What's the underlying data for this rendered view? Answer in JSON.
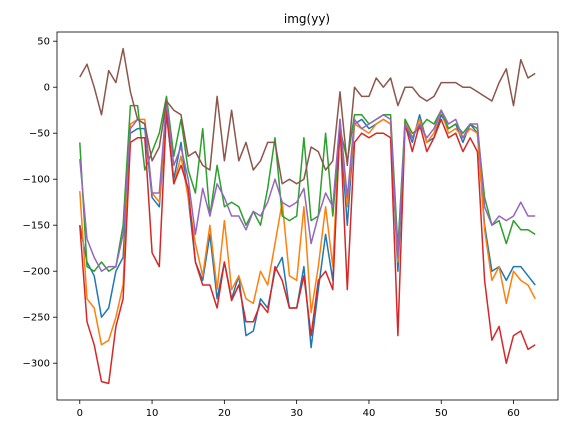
{
  "chart_data": {
    "type": "line",
    "title": "img(yy)",
    "xlabel": "",
    "ylabel": "",
    "xlim": [
      -3.15,
      66.15
    ],
    "ylim": [
      -340,
      60
    ],
    "xticks": [
      0,
      10,
      20,
      30,
      40,
      50,
      60
    ],
    "yticks": [
      -300,
      -250,
      -200,
      -150,
      -100,
      -50,
      0,
      50
    ],
    "grid": false,
    "x": [
      0,
      1,
      2,
      3,
      4,
      5,
      6,
      7,
      8,
      9,
      10,
      11,
      12,
      13,
      14,
      15,
      16,
      17,
      18,
      19,
      20,
      21,
      22,
      23,
      24,
      25,
      26,
      27,
      28,
      29,
      30,
      31,
      32,
      33,
      34,
      35,
      36,
      37,
      38,
      39,
      40,
      41,
      42,
      43,
      44,
      45,
      46,
      47,
      48,
      49,
      50,
      51,
      52,
      53,
      54,
      55,
      56,
      57,
      58,
      59,
      60,
      61,
      62,
      63
    ],
    "series": [
      {
        "color": "#1f77b4",
        "values": [
          -150,
          -190,
          -205,
          -250,
          -240,
          -200,
          -185,
          -50,
          -45,
          -45,
          -120,
          -130,
          -30,
          -100,
          -60,
          -120,
          -190,
          -210,
          -160,
          -230,
          -190,
          -230,
          -205,
          -270,
          -265,
          -230,
          -240,
          -200,
          -185,
          -240,
          -240,
          -195,
          -283,
          -220,
          -160,
          -210,
          -40,
          -150,
          -40,
          -35,
          -45,
          -40,
          -35,
          -40,
          -200,
          -40,
          -60,
          -30,
          -60,
          -55,
          -30,
          -45,
          -40,
          -60,
          -40,
          -50,
          -150,
          -200,
          -195,
          -210,
          -195,
          -195,
          -205,
          -215
        ]
      },
      {
        "color": "#ff7f0e",
        "values": [
          -113,
          -230,
          -240,
          -280,
          -275,
          -250,
          -215,
          -40,
          -35,
          -35,
          -115,
          -125,
          -25,
          -105,
          -75,
          -120,
          -170,
          -205,
          -150,
          -220,
          -145,
          -220,
          -205,
          -230,
          -235,
          -200,
          -215,
          -170,
          -125,
          -205,
          -210,
          -130,
          -245,
          -195,
          -130,
          -195,
          -35,
          -130,
          -40,
          -45,
          -50,
          -40,
          -35,
          -40,
          -190,
          -35,
          -55,
          -35,
          -60,
          -50,
          -25,
          -50,
          -45,
          -55,
          -45,
          -50,
          -155,
          -210,
          -195,
          -235,
          -200,
          -210,
          -215,
          -230
        ]
      },
      {
        "color": "#2ca02c",
        "values": [
          -60,
          -195,
          -200,
          -190,
          -200,
          -195,
          -150,
          -20,
          -20,
          -90,
          -70,
          -50,
          -10,
          -75,
          -35,
          -90,
          -115,
          -45,
          -140,
          -85,
          -130,
          -125,
          -130,
          -150,
          -135,
          -150,
          -110,
          -55,
          -140,
          -145,
          -140,
          -55,
          -145,
          -140,
          -50,
          -140,
          -45,
          -80,
          -30,
          -30,
          -40,
          -35,
          -30,
          -30,
          -175,
          -35,
          -50,
          -45,
          -35,
          -40,
          -25,
          -45,
          -40,
          -50,
          -40,
          -45,
          -120,
          -150,
          -145,
          -170,
          -145,
          -155,
          -155,
          -160
        ]
      },
      {
        "color": "#d62728",
        "values": [
          -150,
          -255,
          -280,
          -320,
          -322,
          -260,
          -230,
          -60,
          -55,
          -55,
          -180,
          -195,
          -25,
          -105,
          -85,
          -110,
          -190,
          -215,
          -215,
          -240,
          -190,
          -232,
          -215,
          -255,
          -255,
          -235,
          -245,
          -195,
          -210,
          -240,
          -240,
          -205,
          -270,
          -210,
          -200,
          -220,
          -40,
          -220,
          -60,
          -50,
          -55,
          -50,
          -50,
          -55,
          -270,
          -40,
          -70,
          -40,
          -70,
          -55,
          -35,
          -55,
          -50,
          -70,
          -55,
          -70,
          -210,
          -275,
          -260,
          -300,
          -270,
          -265,
          -285,
          -280
        ]
      },
      {
        "color": "#9467bd",
        "values": [
          -78,
          -165,
          -185,
          -200,
          -195,
          -195,
          -160,
          -45,
          -35,
          -40,
          -115,
          -115,
          -15,
          -85,
          -65,
          -100,
          -160,
          -110,
          -140,
          -105,
          -120,
          -140,
          -140,
          -155,
          -135,
          -140,
          -125,
          -100,
          -125,
          -130,
          -125,
          -110,
          -170,
          -140,
          -115,
          -130,
          -35,
          -120,
          -35,
          -45,
          -40,
          -35,
          -30,
          -35,
          -185,
          -40,
          -55,
          -40,
          -55,
          -45,
          -25,
          -40,
          -35,
          -55,
          -40,
          -40,
          -130,
          -150,
          -140,
          -145,
          -140,
          -125,
          -140,
          -140
        ]
      },
      {
        "color": "#8c564b",
        "values": [
          11,
          25,
          0,
          -30,
          18,
          5,
          42,
          -5,
          -35,
          -40,
          -80,
          -65,
          -15,
          -25,
          -30,
          -75,
          -70,
          -85,
          -90,
          -10,
          -80,
          -25,
          -80,
          -60,
          -90,
          -80,
          -60,
          -60,
          -105,
          -100,
          -105,
          -100,
          -65,
          -70,
          -90,
          -80,
          -5,
          -85,
          0,
          -10,
          -10,
          10,
          0,
          10,
          -20,
          0,
          0,
          -10,
          -15,
          -10,
          5,
          5,
          5,
          0,
          0,
          -5,
          -10,
          -15,
          5,
          20,
          -20,
          30,
          10,
          15
        ]
      }
    ]
  }
}
